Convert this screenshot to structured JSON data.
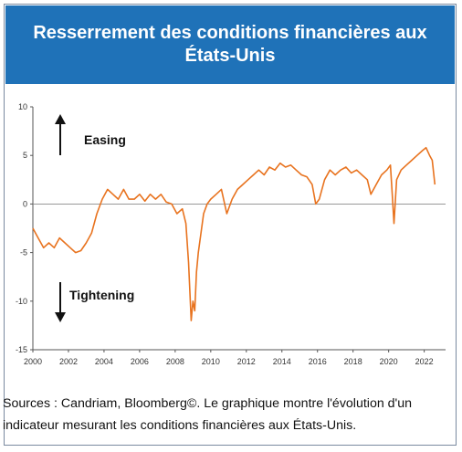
{
  "title": "Resserrement des conditions financières aux États-Unis",
  "caption": "Sources : Candriam, Bloomberg©. Le graphique montre l'évolution d'un indicateur mesurant les conditions financières aux États-Unis.",
  "colors": {
    "title_bg": "#1f72b8",
    "line": "#e8731f"
  },
  "chart_data": {
    "type": "line",
    "x_ticks": [
      "2000",
      "2002",
      "2004",
      "2006",
      "2008",
      "2010",
      "2012",
      "2014",
      "2016",
      "2018",
      "2020",
      "2022"
    ],
    "y_ticks": [
      "10",
      "5",
      "0",
      "-5",
      "-10",
      "-15"
    ],
    "xlim": [
      2000,
      2023.2
    ],
    "ylim": [
      -15,
      10
    ],
    "annotations": [
      {
        "text": "Easing",
        "arrow": "up"
      },
      {
        "text": "Tightening",
        "arrow": "down"
      }
    ],
    "series": [
      {
        "x": [
          2000.0,
          2000.3,
          2000.6,
          2000.9,
          2001.2,
          2001.5,
          2001.8,
          2002.1,
          2002.4,
          2002.7,
          2003.0,
          2003.3,
          2003.6,
          2003.9,
          2004.2,
          2004.5,
          2004.8,
          2005.1,
          2005.4,
          2005.7,
          2006.0,
          2006.3,
          2006.6,
          2006.9,
          2007.2,
          2007.5,
          2007.8,
          2008.1,
          2008.4,
          2008.6,
          2008.75,
          2008.9,
          2009.0,
          2009.1,
          2009.2,
          2009.3,
          2009.45,
          2009.6,
          2009.8,
          2010.0,
          2010.3,
          2010.6,
          2010.9,
          2011.2,
          2011.5,
          2011.8,
          2012.1,
          2012.4,
          2012.7,
          2013.0,
          2013.3,
          2013.6,
          2013.9,
          2014.2,
          2014.5,
          2014.8,
          2015.1,
          2015.4,
          2015.7,
          2015.9,
          2016.1,
          2016.4,
          2016.7,
          2017.0,
          2017.3,
          2017.6,
          2017.9,
          2018.2,
          2018.5,
          2018.8,
          2019.0,
          2019.3,
          2019.6,
          2019.9,
          2020.1,
          2020.2,
          2020.3,
          2020.45,
          2020.7,
          2021.0,
          2021.3,
          2021.6,
          2021.9,
          2022.1,
          2022.3,
          2022.45,
          2022.6
        ],
        "y": [
          -2.5,
          -3.5,
          -4.5,
          -4.0,
          -4.5,
          -3.5,
          -4.0,
          -4.5,
          -5.0,
          -4.8,
          -4.0,
          -3.0,
          -1.0,
          0.5,
          1.5,
          1.0,
          0.5,
          1.5,
          0.5,
          0.5,
          1.0,
          0.3,
          1.0,
          0.5,
          1.0,
          0.2,
          0.0,
          -1.0,
          -0.5,
          -2.0,
          -6.0,
          -12.0,
          -10.0,
          -11.0,
          -7.0,
          -5.0,
          -3.0,
          -1.0,
          0.0,
          0.5,
          1.0,
          1.5,
          -1.0,
          0.5,
          1.5,
          2.0,
          2.5,
          3.0,
          3.5,
          3.0,
          3.8,
          3.5,
          4.2,
          3.8,
          4.0,
          3.5,
          3.0,
          2.8,
          2.0,
          0.0,
          0.5,
          2.5,
          3.5,
          3.0,
          3.5,
          3.8,
          3.2,
          3.5,
          3.0,
          2.5,
          1.0,
          2.0,
          3.0,
          3.5,
          4.0,
          1.0,
          -2.0,
          2.5,
          3.5,
          4.0,
          4.5,
          5.0,
          5.5,
          5.8,
          5.0,
          4.5,
          2.0
        ]
      }
    ]
  }
}
